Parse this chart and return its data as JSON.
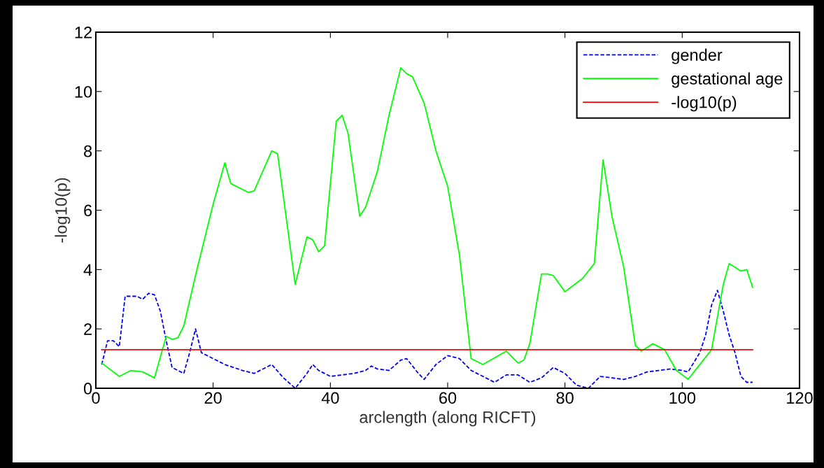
{
  "chart_data": {
    "type": "line",
    "xlabel": "arclength (along RICFT)",
    "ylabel": "-log10(p)",
    "xlim": [
      0,
      120
    ],
    "ylim": [
      0,
      12
    ],
    "xticks": [
      0,
      20,
      40,
      60,
      80,
      100,
      120
    ],
    "yticks": [
      0,
      2,
      4,
      6,
      8,
      10,
      12
    ],
    "grid": false,
    "legend": "top right",
    "series": [
      {
        "name": "gender",
        "color": "#0000ff",
        "line_style": "dashed",
        "x": [
          1,
          2,
          3,
          4,
          5,
          7,
          8,
          9,
          10,
          11,
          12,
          13,
          15,
          16,
          17,
          18,
          20,
          22,
          25,
          27,
          30,
          32,
          34,
          36,
          37,
          38,
          40,
          42,
          44,
          46,
          47,
          48,
          50,
          52,
          53,
          55,
          56,
          58,
          60,
          62,
          64,
          66,
          68,
          70,
          72,
          74,
          76,
          78,
          80,
          82,
          84,
          86,
          88,
          90,
          92,
          94,
          96,
          98,
          100,
          101,
          103,
          104,
          105,
          106,
          107,
          108,
          109,
          110,
          111,
          112
        ],
        "values": [
          0.8,
          1.6,
          1.6,
          1.4,
          3.1,
          3.1,
          3.0,
          3.2,
          3.15,
          2.6,
          1.6,
          0.7,
          0.5,
          1.2,
          2.0,
          1.2,
          1.0,
          0.8,
          0.6,
          0.5,
          0.8,
          0.35,
          0.0,
          0.5,
          0.8,
          0.6,
          0.4,
          0.45,
          0.5,
          0.6,
          0.75,
          0.65,
          0.6,
          0.95,
          1.0,
          0.5,
          0.3,
          0.8,
          1.1,
          1.0,
          0.6,
          0.4,
          0.2,
          0.45,
          0.45,
          0.2,
          0.35,
          0.7,
          0.5,
          0.1,
          0.0,
          0.4,
          0.35,
          0.3,
          0.4,
          0.55,
          0.6,
          0.65,
          0.6,
          0.55,
          1.2,
          1.8,
          2.8,
          3.3,
          2.6,
          1.8,
          1.2,
          0.4,
          0.2,
          0.2
        ]
      },
      {
        "name": "gestational age",
        "color": "#00ff00",
        "line_style": "solid",
        "x": [
          1,
          4,
          6,
          8,
          10,
          12,
          13,
          14,
          15,
          17,
          20,
          22,
          23,
          26,
          27,
          30,
          31,
          34,
          36,
          37,
          38,
          39,
          41,
          42,
          43,
          45,
          46,
          48,
          50,
          52,
          53,
          54,
          56,
          58,
          60,
          62,
          64,
          66,
          70,
          72,
          73,
          74,
          76,
          77,
          78,
          80,
          81,
          83,
          85,
          86.5,
          88,
          90,
          92,
          93,
          95,
          97,
          99,
          101,
          103,
          105,
          107,
          108,
          110,
          111,
          112
        ],
        "values": [
          0.85,
          0.4,
          0.6,
          0.55,
          0.35,
          1.75,
          1.65,
          1.7,
          2.1,
          3.8,
          6.2,
          7.6,
          6.9,
          6.6,
          6.65,
          8.0,
          7.9,
          3.5,
          5.1,
          5.0,
          4.6,
          4.8,
          9.0,
          9.2,
          8.6,
          5.8,
          6.1,
          7.3,
          9.2,
          10.8,
          10.6,
          10.5,
          9.6,
          8.0,
          6.8,
          4.5,
          1.0,
          0.8,
          1.25,
          0.85,
          0.95,
          1.5,
          3.85,
          3.85,
          3.8,
          3.25,
          3.4,
          3.7,
          4.2,
          7.7,
          5.8,
          4.1,
          1.45,
          1.25,
          1.5,
          1.3,
          0.6,
          0.3,
          0.8,
          1.3,
          3.5,
          4.2,
          3.95,
          4.0,
          3.4
        ]
      },
      {
        "name": "-log10(p)",
        "color": "#ff0000",
        "line_style": "solid",
        "x": [
          1,
          112
        ],
        "values": [
          1.3,
          1.3
        ]
      }
    ]
  }
}
